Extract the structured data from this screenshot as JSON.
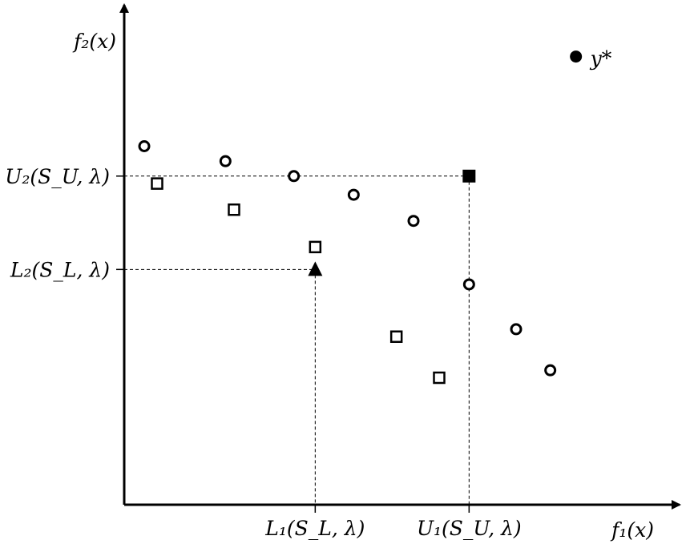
{
  "chart_data": {
    "type": "scatter",
    "axes": {
      "x_label": "f₁(x)",
      "y_label": "f₂(x)",
      "x_ticks": [
        "L₁(S_L, λ)",
        "U₁(S_U, λ)"
      ],
      "y_ticks": [
        "U₂(S_U, λ)",
        "L₂(S_L, λ)"
      ]
    },
    "ideal_point_label": "y*",
    "series": [
      {
        "marker": "open-circle",
        "points": [
          [
            1.5,
            9.6
          ],
          [
            3.4,
            9.2
          ],
          [
            5.0,
            8.8
          ],
          [
            6.4,
            8.3
          ],
          [
            7.8,
            7.6
          ],
          [
            9.1,
            5.9
          ],
          [
            10.2,
            4.7
          ],
          [
            11.0,
            3.6
          ]
        ]
      },
      {
        "marker": "open-square",
        "points": [
          [
            1.8,
            8.6
          ],
          [
            3.6,
            7.9
          ],
          [
            5.5,
            6.9
          ],
          [
            7.4,
            4.5
          ],
          [
            8.4,
            3.4
          ]
        ]
      }
    ],
    "special_points": {
      "upper": {
        "marker": "filled-square",
        "x": 9.1,
        "y": 8.8
      },
      "lower": {
        "marker": "filled-triangle",
        "x": 5.5,
        "y": 6.3
      },
      "ideal": {
        "marker": "filled-circle",
        "x": 11.6,
        "y": 12.0
      }
    },
    "x_range": [
      -1.5,
      13.8
    ],
    "y_range": [
      0,
      13.0
    ],
    "grid": false,
    "legend": "none"
  }
}
